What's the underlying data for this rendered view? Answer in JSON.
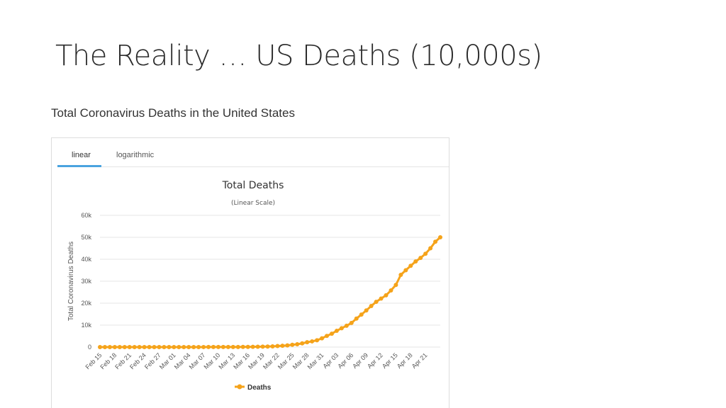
{
  "slide": {
    "title": "The Reality … US Deaths (10,000s)"
  },
  "embed": {
    "heading": "Total Coronavirus Deaths in the United States",
    "tabs": [
      {
        "label": "linear",
        "active": true
      },
      {
        "label": "logarithmic",
        "active": false
      }
    ]
  },
  "colors": {
    "series": "#f5a31a",
    "tab_active": "#4aa3df",
    "grid": "#e6e6e6"
  },
  "chart_data": {
    "type": "line",
    "title": "Total Deaths",
    "subtitle": "(Linear Scale)",
    "ylabel": "Total Coronavirus Deaths",
    "xlabel": "",
    "ylim": [
      0,
      60000
    ],
    "y_ticks": [
      0,
      10000,
      20000,
      30000,
      40000,
      50000,
      60000
    ],
    "y_tick_labels": [
      "0",
      "10k",
      "20k",
      "30k",
      "40k",
      "50k",
      "60k"
    ],
    "x_tick_labels": [
      "Feb 15",
      "Feb 18",
      "Feb 21",
      "Feb 24",
      "Feb 27",
      "Mar 01",
      "Mar 04",
      "Mar 07",
      "Mar 10",
      "Mar 13",
      "Mar 16",
      "Mar 19",
      "Mar 22",
      "Mar 25",
      "Mar 28",
      "Mar 31",
      "Apr 03",
      "Apr 06",
      "Apr 09",
      "Apr 12",
      "Apr 15",
      "Apr 18",
      "Apr 21"
    ],
    "grid": true,
    "legend": "bottom-center",
    "series": [
      {
        "name": "Deaths",
        "x": [
          "Feb 15",
          "Feb 16",
          "Feb 17",
          "Feb 18",
          "Feb 19",
          "Feb 20",
          "Feb 21",
          "Feb 22",
          "Feb 23",
          "Feb 24",
          "Feb 25",
          "Feb 26",
          "Feb 27",
          "Feb 28",
          "Feb 29",
          "Mar 01",
          "Mar 02",
          "Mar 03",
          "Mar 04",
          "Mar 05",
          "Mar 06",
          "Mar 07",
          "Mar 08",
          "Mar 09",
          "Mar 10",
          "Mar 11",
          "Mar 12",
          "Mar 13",
          "Mar 14",
          "Mar 15",
          "Mar 16",
          "Mar 17",
          "Mar 18",
          "Mar 19",
          "Mar 20",
          "Mar 21",
          "Mar 22",
          "Mar 23",
          "Mar 24",
          "Mar 25",
          "Mar 26",
          "Mar 27",
          "Mar 28",
          "Mar 29",
          "Mar 30",
          "Mar 31",
          "Apr 01",
          "Apr 02",
          "Apr 03",
          "Apr 04",
          "Apr 05",
          "Apr 06",
          "Apr 07",
          "Apr 08",
          "Apr 09",
          "Apr 10",
          "Apr 11",
          "Apr 12",
          "Apr 13",
          "Apr 14",
          "Apr 15",
          "Apr 16",
          "Apr 17",
          "Apr 18",
          "Apr 19",
          "Apr 20",
          "Apr 21",
          "Apr 22",
          "Apr 23",
          "Apr 24"
        ],
        "values": [
          0,
          0,
          0,
          0,
          0,
          0,
          0,
          0,
          0,
          0,
          0,
          0,
          0,
          0,
          1,
          1,
          6,
          9,
          11,
          12,
          15,
          19,
          22,
          26,
          30,
          38,
          41,
          49,
          57,
          69,
          87,
          110,
          150,
          205,
          260,
          340,
          470,
          590,
          780,
          1050,
          1300,
          1700,
          2200,
          2600,
          3100,
          4000,
          5100,
          6100,
          7400,
          8600,
          9700,
          11000,
          13000,
          14800,
          16700,
          18700,
          20600,
          22100,
          23600,
          25800,
          28300,
          32900,
          35000,
          37000,
          39000,
          40600,
          42500,
          45000,
          48000,
          50000
        ]
      }
    ]
  }
}
